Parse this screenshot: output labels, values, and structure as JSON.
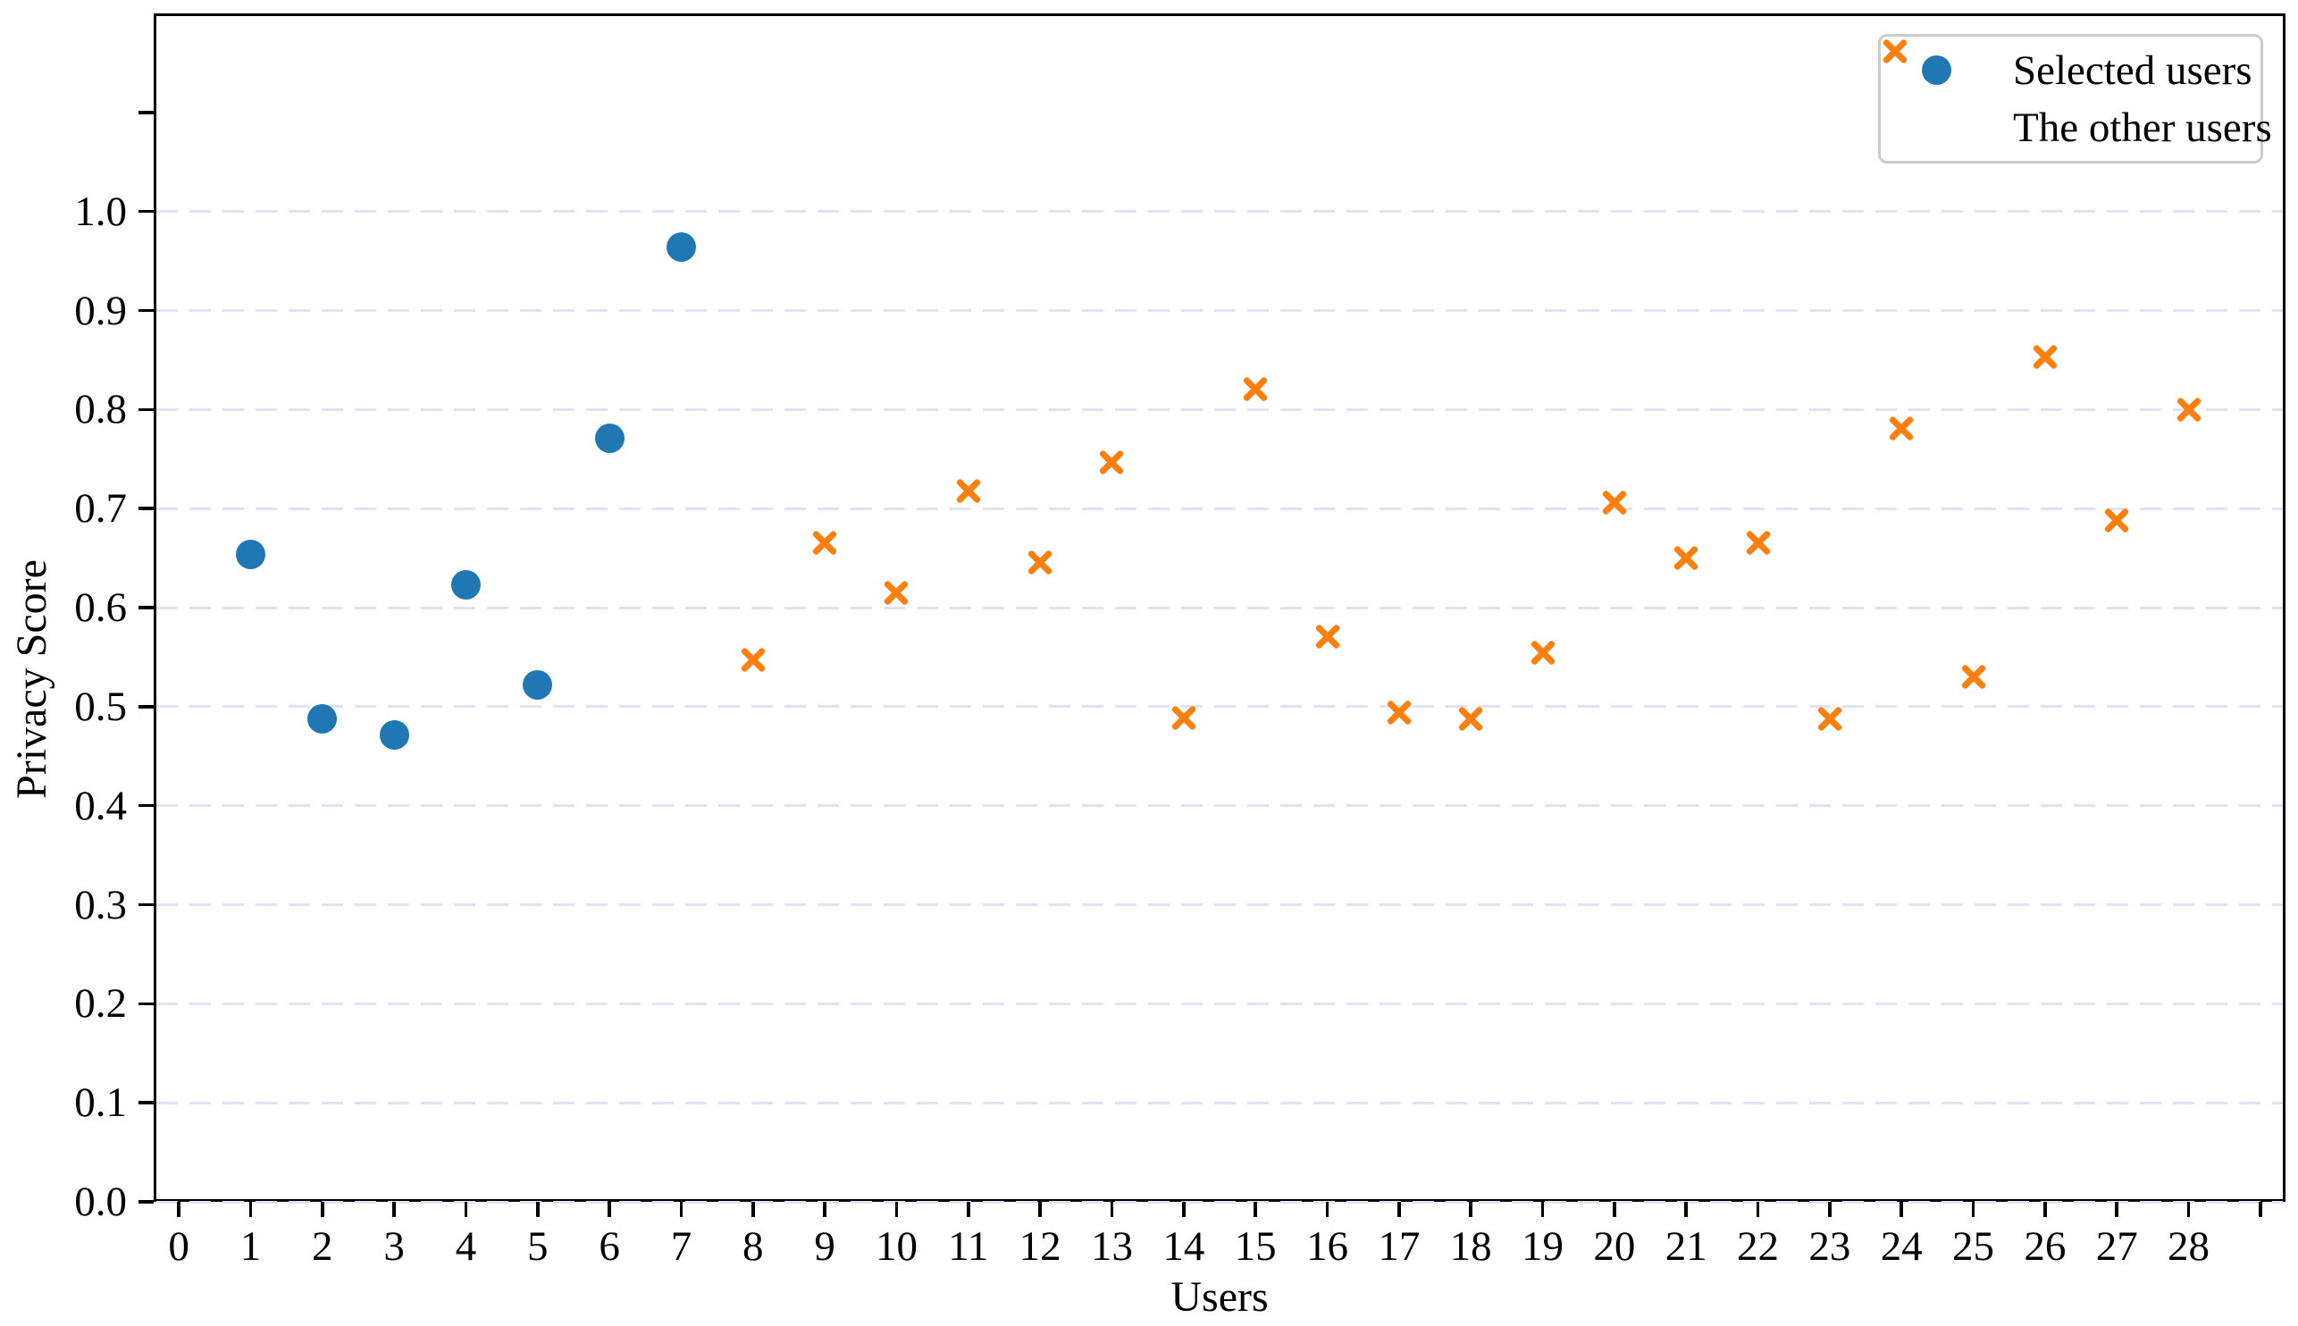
{
  "figure": {
    "background": "#ffffff",
    "axis_color": "#000000",
    "grid_color": "#e2e2f6",
    "legend_border_color": "#cccccc"
  },
  "chart_data": {
    "type": "scatter",
    "title": "",
    "xlabel": "Users",
    "ylabel": "Privacy Score",
    "xlim": [
      -0.35,
      29.35
    ],
    "ylim": [
      0,
      1.2
    ],
    "grid": {
      "axis": "y",
      "style": "dashed",
      "color": "#e2e2f6",
      "values": [
        0.0,
        0.1,
        0.2,
        0.3,
        0.4,
        0.5,
        0.6,
        0.7,
        0.8,
        0.9,
        1.0
      ]
    },
    "x_ticks": {
      "values": [
        0,
        1,
        2,
        3,
        4,
        5,
        6,
        7,
        8,
        9,
        10,
        11,
        12,
        13,
        14,
        15,
        16,
        17,
        18,
        19,
        20,
        21,
        22,
        23,
        24,
        25,
        26,
        27,
        28,
        29
      ],
      "labels": [
        "0",
        "1",
        "2",
        "3",
        "4",
        "5",
        "6",
        "7",
        "8",
        "9",
        "10",
        "11",
        "12",
        "13",
        "14",
        "15",
        "16",
        "17",
        "18",
        "19",
        "20",
        "21",
        "22",
        "23",
        "24",
        "25",
        "26",
        "27",
        "28",
        ""
      ]
    },
    "y_ticks": {
      "values": [
        0.0,
        0.1,
        0.2,
        0.3,
        0.4,
        0.5,
        0.6,
        0.7,
        0.8,
        0.9,
        1.0,
        1.1
      ],
      "labels": [
        "0.0",
        "0.1",
        "0.2",
        "0.3",
        "0.4",
        "0.5",
        "0.6",
        "0.7",
        "0.8",
        "0.9",
        "1.0",
        ""
      ]
    },
    "legend": {
      "position": "upper right",
      "entries": [
        {
          "label": "Selected users",
          "marker": "circle",
          "color": "#1f77b4"
        },
        {
          "label": "The other users",
          "marker": "x",
          "color": "#ff7f0e"
        }
      ]
    },
    "series": [
      {
        "name": "Selected users",
        "marker": "circle",
        "color": "#1f77b4",
        "points": [
          [
            1,
            0.654
          ],
          [
            2,
            0.488
          ],
          [
            3,
            0.471
          ],
          [
            4,
            0.623
          ],
          [
            5,
            0.522
          ],
          [
            6,
            0.771
          ],
          [
            7,
            0.964
          ]
        ]
      },
      {
        "name": "The other users",
        "marker": "x",
        "color": "#ff7f0e",
        "points": [
          [
            8,
            0.547
          ],
          [
            9,
            0.665
          ],
          [
            10,
            0.615
          ],
          [
            11,
            0.718
          ],
          [
            12,
            0.646
          ],
          [
            13,
            0.747
          ],
          [
            14,
            0.489
          ],
          [
            15,
            0.821
          ],
          [
            16,
            0.571
          ],
          [
            17,
            0.494
          ],
          [
            18,
            0.488
          ],
          [
            19,
            0.554
          ],
          [
            20,
            0.706
          ],
          [
            21,
            0.65
          ],
          [
            22,
            0.665
          ],
          [
            23,
            0.488
          ],
          [
            24,
            0.781
          ],
          [
            25,
            0.53
          ],
          [
            26,
            0.853
          ],
          [
            27,
            0.688
          ],
          [
            28,
            0.8
          ]
        ]
      }
    ]
  }
}
